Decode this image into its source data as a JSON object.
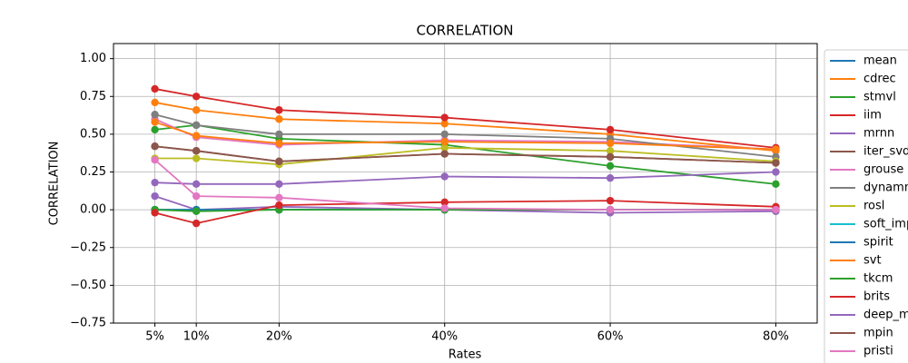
{
  "chart_data": {
    "type": "line",
    "title": "CORRELATION",
    "x_label": "Rates",
    "y_label": "CORRELATION",
    "x": [
      5,
      10,
      20,
      40,
      60,
      80
    ],
    "xlim": [
      0,
      85
    ],
    "xticks": [
      {
        "value": 5,
        "label": "5%"
      },
      {
        "value": 10,
        "label": "10%"
      },
      {
        "value": 20,
        "label": "20%"
      },
      {
        "value": 40,
        "label": "40%"
      },
      {
        "value": 60,
        "label": "60%"
      },
      {
        "value": 80,
        "label": "80%"
      }
    ],
    "ylim": [
      -0.75,
      1.1
    ],
    "yticks": [
      {
        "value": -0.75,
        "label": "−0.75"
      },
      {
        "value": -0.5,
        "label": "−0.50"
      },
      {
        "value": -0.25,
        "label": "−0.25"
      },
      {
        "value": 0,
        "label": "0.00"
      },
      {
        "value": 0.25,
        "label": "0.25"
      },
      {
        "value": 0.5,
        "label": "0.50"
      },
      {
        "value": 0.75,
        "label": "0.75"
      },
      {
        "value": 1,
        "label": "1.00"
      }
    ],
    "grid": true,
    "legend": "outside-right",
    "markers": true,
    "series": [
      {
        "name": "mean",
        "color": "#1f77b4",
        "values": [
          0,
          0,
          0,
          0,
          0,
          0
        ]
      },
      {
        "name": "cdrec",
        "color": "#ff7f0e",
        "values": [
          0.71,
          0.66,
          0.6,
          0.57,
          0.5,
          0.39
        ]
      },
      {
        "name": "stmvl",
        "color": "#2ca02c",
        "values": [
          0.53,
          0.56,
          0.47,
          0.43,
          0.29,
          0.17
        ]
      },
      {
        "name": "iim",
        "color": "#d62728",
        "values": [
          0.8,
          0.75,
          0.66,
          0.61,
          0.53,
          0.41
        ]
      },
      {
        "name": "mrnn",
        "color": "#9467bd",
        "values": [
          0.09,
          0,
          0.02,
          0,
          -0.02,
          -0.01
        ]
      },
      {
        "name": "iter_svd",
        "color": "#8c564b",
        "values": [
          0.42,
          0.39,
          0.32,
          0.37,
          0.35,
          0.31
        ]
      },
      {
        "name": "grouse",
        "color": "#e377c2",
        "values": [
          0.6,
          0.48,
          0.43,
          0.46,
          0.45,
          0.4
        ]
      },
      {
        "name": "dynammo",
        "color": "#7f7f7f",
        "values": [
          0.63,
          0.56,
          0.5,
          0.5,
          0.47,
          0.35
        ]
      },
      {
        "name": "rosl",
        "color": "#bcbd22",
        "values": [
          0.34,
          0.34,
          0.3,
          0.41,
          0.39,
          0.32
        ]
      },
      {
        "name": "soft_impute",
        "color": "#17becf",
        "values": [
          0,
          0,
          0,
          0,
          0,
          0
        ]
      },
      {
        "name": "spirit",
        "color": "#1f77b4",
        "values": [
          0,
          0,
          0,
          0,
          0,
          0
        ]
      },
      {
        "name": "svt",
        "color": "#ff7f0e",
        "values": [
          0.58,
          0.49,
          0.44,
          0.45,
          0.44,
          0.4
        ]
      },
      {
        "name": "tkcm",
        "color": "#2ca02c",
        "values": [
          0,
          -0.01,
          0,
          0,
          0,
          0
        ]
      },
      {
        "name": "brits",
        "color": "#d62728",
        "values": [
          -0.02,
          -0.09,
          0.03,
          0.05,
          0.06,
          0.02
        ]
      },
      {
        "name": "deep_mvi",
        "color": "#9467bd",
        "values": [
          0.18,
          0.17,
          0.17,
          0.22,
          0.21,
          0.25
        ]
      },
      {
        "name": "mpin",
        "color": "#8c564b",
        "values": [
          0.42,
          0.39,
          0.32,
          0.37,
          0.35,
          0.31
        ]
      },
      {
        "name": "pristi",
        "color": "#e377c2",
        "values": [
          0.33,
          0.09,
          0.08,
          0.01,
          0,
          0
        ]
      }
    ]
  }
}
